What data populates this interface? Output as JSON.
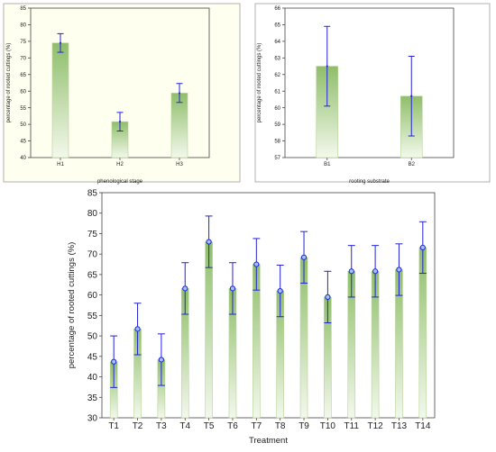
{
  "chart_data": [
    {
      "type": "bar",
      "xlabel": "phenological stage",
      "ylabel": "percentage of rooted cuttings (%)",
      "categories": [
        "H1",
        "H2",
        "H3"
      ],
      "values": [
        74.5,
        50.8,
        59.4
      ],
      "error_low": [
        71.7,
        48.0,
        56.6
      ],
      "error_high": [
        77.3,
        53.6,
        62.3
      ],
      "ylim": [
        40,
        85
      ],
      "yticks": [
        "40",
        "45",
        "50",
        "55",
        "60",
        "65",
        "70",
        "75",
        "80",
        "85"
      ],
      "background": "#fffff0",
      "grid": false
    },
    {
      "type": "bar",
      "xlabel": "rooting substrate",
      "ylabel": "percentage of rooted cuttings (%)",
      "categories": [
        "B1",
        "B2"
      ],
      "values": [
        62.5,
        60.7
      ],
      "error_low": [
        60.1,
        58.3
      ],
      "error_high": [
        64.9,
        63.1
      ],
      "ylim": [
        57,
        66
      ],
      "yticks": [
        "57",
        "58",
        "59",
        "60",
        "61",
        "62",
        "63",
        "64",
        "65",
        "66"
      ],
      "background": "#ffffff",
      "grid": false
    },
    {
      "type": "bar",
      "xlabel": "Treatment",
      "ylabel": "percentage of rooted cuttings (%)",
      "categories": [
        "T1",
        "T2",
        "T3",
        "T4",
        "T5",
        "T6",
        "T7",
        "T8",
        "T9",
        "T10",
        "T11",
        "T12",
        "T13",
        "T14"
      ],
      "values": [
        43.7,
        51.7,
        44.2,
        61.6,
        73.0,
        61.6,
        67.5,
        61.0,
        69.2,
        59.5,
        65.8,
        65.8,
        66.2,
        71.6
      ],
      "error_low": [
        37.4,
        45.4,
        37.9,
        55.3,
        66.7,
        55.3,
        61.2,
        54.7,
        62.9,
        53.2,
        59.5,
        59.5,
        59.9,
        65.3
      ],
      "error_high": [
        50.0,
        58.0,
        50.5,
        67.9,
        79.3,
        67.9,
        73.8,
        67.3,
        75.5,
        65.8,
        72.1,
        72.1,
        72.5,
        77.9
      ],
      "ylim": [
        30,
        85
      ],
      "yticks": [
        "30",
        "35",
        "40",
        "45",
        "50",
        "55",
        "60",
        "65",
        "70",
        "75",
        "80",
        "85"
      ],
      "background": "#ffffff",
      "grid": false
    }
  ],
  "colors": {
    "bar_top": "#8fbe6a",
    "bar_bottom": "#f3f8ec",
    "bar_stroke": "#b7d39a",
    "error": "#2222dd",
    "marker_fill": "#9ec3ff",
    "axis": "#444444",
    "panel_border": "#b0b0b0"
  }
}
